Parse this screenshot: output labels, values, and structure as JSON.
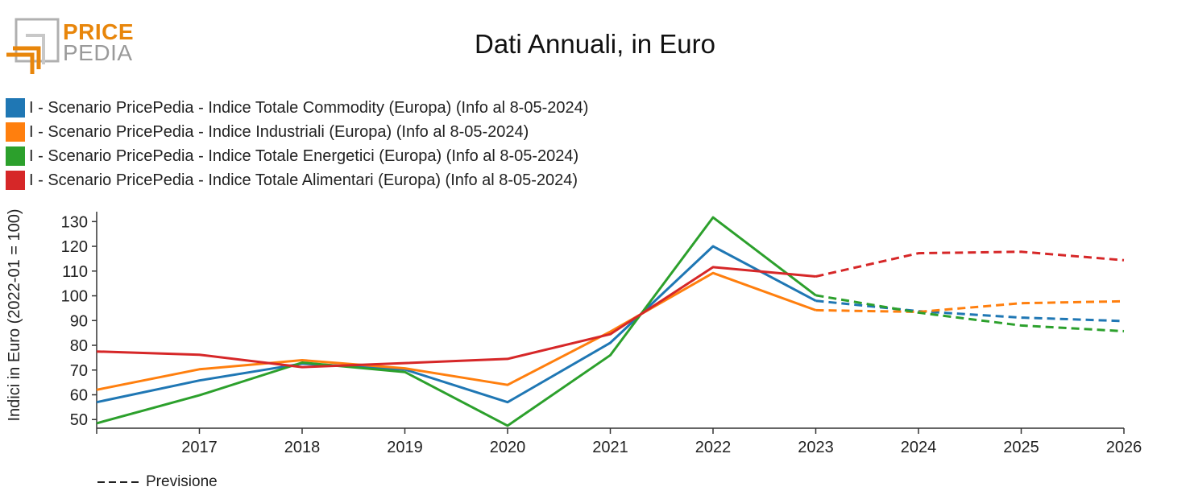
{
  "logo": {
    "line1": "PRICE",
    "line2": "PEDIA",
    "accent": "#e8860b",
    "grey": "#9a9a9a"
  },
  "chart_data": {
    "type": "line",
    "title": "Dati Annuali, in Euro",
    "ylabel": "Indici in Euro (2022-01 = 100)",
    "xlabel": "",
    "x": [
      2016,
      2017,
      2018,
      2019,
      2020,
      2021,
      2022,
      2023,
      2024,
      2025,
      2026
    ],
    "x_tick_labels": [
      "2017",
      "2018",
      "2019",
      "2020",
      "2021",
      "2022",
      "2023",
      "2024",
      "2025",
      "2026"
    ],
    "y_ticks": [
      50,
      60,
      70,
      80,
      90,
      100,
      110,
      120,
      130
    ],
    "xlim": [
      2016,
      2026
    ],
    "ylim": [
      46.5,
      134
    ],
    "forecast_from": 2023,
    "forecast_label": "Previsione",
    "legend_position": "top-left",
    "grid": false,
    "series": [
      {
        "name": "I - Scenario PricePedia - Indice Totale Commodity (Europa) (Info al 8-05-2024)",
        "color": "#1f77b4",
        "values": [
          57,
          65.8,
          72.6,
          70.2,
          57,
          81,
          120,
          98,
          93.8,
          91.2,
          89.8
        ]
      },
      {
        "name": "I - Scenario PricePedia - Indice Industriali (Europa) (Info al 8-05-2024)",
        "color": "#ff7f0e",
        "values": [
          62,
          70.3,
          74,
          70.7,
          64,
          85.5,
          109.2,
          94.2,
          93.5,
          97,
          97.8
        ]
      },
      {
        "name": "I - Scenario PricePedia - Indice Totale Energetici (Europa) (Info al 8-05-2024)",
        "color": "#2ca02c",
        "values": [
          48.5,
          59.8,
          73,
          69.2,
          47.5,
          76,
          131.7,
          100.2,
          93.2,
          88,
          85.7
        ]
      },
      {
        "name": "I - Scenario PricePedia - Indice Totale Alimentari (Europa) (Info al 8-05-2024)",
        "color": "#d62728",
        "values": [
          77.5,
          76.2,
          71.2,
          72.8,
          74.5,
          84.5,
          111.6,
          107.8,
          117.2,
          117.8,
          114.4
        ]
      }
    ]
  }
}
